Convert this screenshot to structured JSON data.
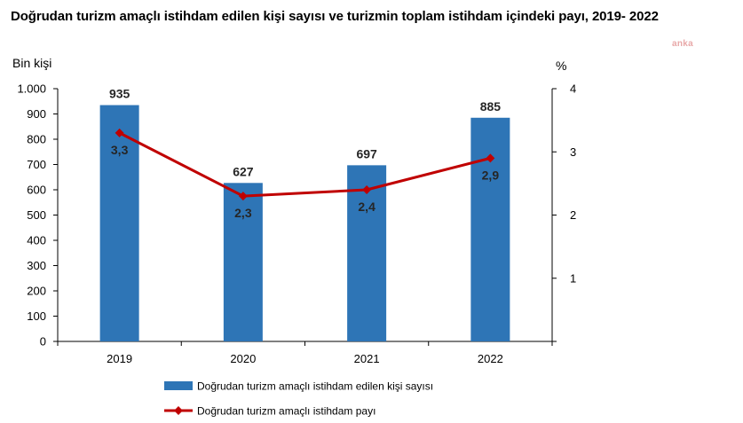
{
  "title": "Doğrudan turizm amaçlı istihdam edilen kişi sayısı ve turizmin toplam istihdam içindeki payı, 2019- 2022",
  "watermark": "anka",
  "colors": {
    "bar": "#2e75b6",
    "line": "#c00000"
  },
  "chart_data": {
    "type": "bar+line",
    "categories": [
      "2019",
      "2020",
      "2021",
      "2022"
    ],
    "left_axis": {
      "unit_label": "Bin kişi",
      "ylim": [
        0,
        1000
      ],
      "ticks": [
        0,
        100,
        200,
        300,
        400,
        500,
        600,
        700,
        800,
        900,
        1000
      ],
      "tick_labels": [
        "0",
        "100",
        "200",
        "300",
        "400",
        "500",
        "600",
        "700",
        "800",
        "900",
        "1.000"
      ]
    },
    "right_axis": {
      "unit_label": "%",
      "ylim": [
        0,
        4
      ],
      "ticks": [
        1,
        2,
        3,
        4
      ],
      "tick_labels": [
        "1",
        "2",
        "3",
        "4"
      ]
    },
    "series": [
      {
        "name": "Doğrudan turizm amaçlı istihdam edilen kişi sayısı",
        "type": "bar",
        "axis": "left",
        "values": [
          935,
          627,
          697,
          885
        ],
        "labels": [
          "935",
          "627",
          "697",
          "885"
        ]
      },
      {
        "name": "Doğrudan turizm amaçlı istihdam payı",
        "type": "line",
        "axis": "right",
        "values": [
          3.3,
          2.3,
          2.4,
          2.9
        ],
        "labels": [
          "3,3",
          "2,3",
          "2,4",
          "2,9"
        ]
      }
    ],
    "legend_position": "bottom-center",
    "grid": false
  }
}
